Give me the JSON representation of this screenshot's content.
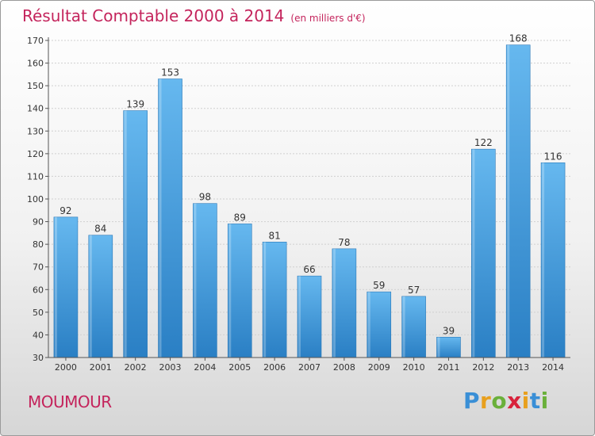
{
  "title": "Résultat Comptable 2000 à 2014",
  "unit": "(en milliers d'€)",
  "commune": "MOUMOUR",
  "logo": {
    "letters": [
      "P",
      "r",
      "o",
      "x",
      "i",
      "t",
      "i"
    ],
    "colors": [
      "#3a8fd6",
      "#e8a01e",
      "#6ab03a",
      "#d8233c",
      "#e8a01e",
      "#3a8fd6",
      "#6ab03a"
    ]
  },
  "colors": {
    "bar_top": "#66b8ef",
    "bar_bottom": "#2a7fc4",
    "accent": "#c4245c"
  },
  "chart_data": {
    "type": "bar",
    "categories": [
      "2000",
      "2001",
      "2002",
      "2003",
      "2004",
      "2005",
      "2006",
      "2007",
      "2008",
      "2009",
      "2010",
      "2011",
      "2012",
      "2013",
      "2014"
    ],
    "values": [
      92,
      84,
      139,
      153,
      98,
      89,
      81,
      66,
      78,
      59,
      57,
      39,
      122,
      168,
      116
    ],
    "ylim": [
      30,
      170
    ],
    "yticks": [
      30,
      40,
      50,
      60,
      70,
      80,
      90,
      100,
      110,
      120,
      130,
      140,
      150,
      160,
      170
    ],
    "grid": true,
    "data_labels": true
  }
}
